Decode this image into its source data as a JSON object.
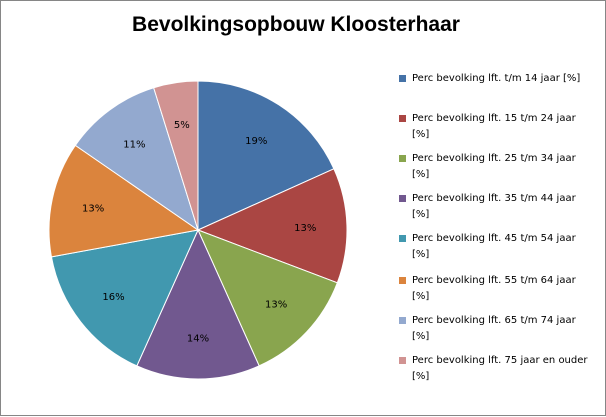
{
  "chart_data": {
    "type": "pie",
    "title": "Bevolkingsopbouw Klooster­haar",
    "categories": [
      "Perc bevolking lft. t/m 14 jaar [%]",
      "Perc bevolking lft. 15 t/m 24 jaar [%]",
      "Perc bevolking lft. 25 t/m 34 jaar [%]",
      "Perc bevolking lft. 35 t/m 44 jaar [%]",
      "Perc bevolking lft. 45 t/m 54 jaar [%]",
      "Perc bevolking lft. 55 t/m 64 jaar [%]",
      "Perc bevolking lft. 65 t/m 74 jaar [%]",
      "Perc bevolking lft. 75 jaar en ouder [%]"
    ],
    "values": [
      19,
      13,
      13,
      14,
      16,
      13,
      11,
      5
    ],
    "data_labels": [
      "19%",
      "13%",
      "13%",
      "14%",
      "16%",
      "13%",
      "11%",
      "5%"
    ],
    "colors": [
      "#4572A7",
      "#AA4643",
      "#89A54E",
      "#71588F",
      "#4198AF",
      "#DB843D",
      "#93A9CF",
      "#D19392"
    ],
    "legend_position": "right"
  }
}
